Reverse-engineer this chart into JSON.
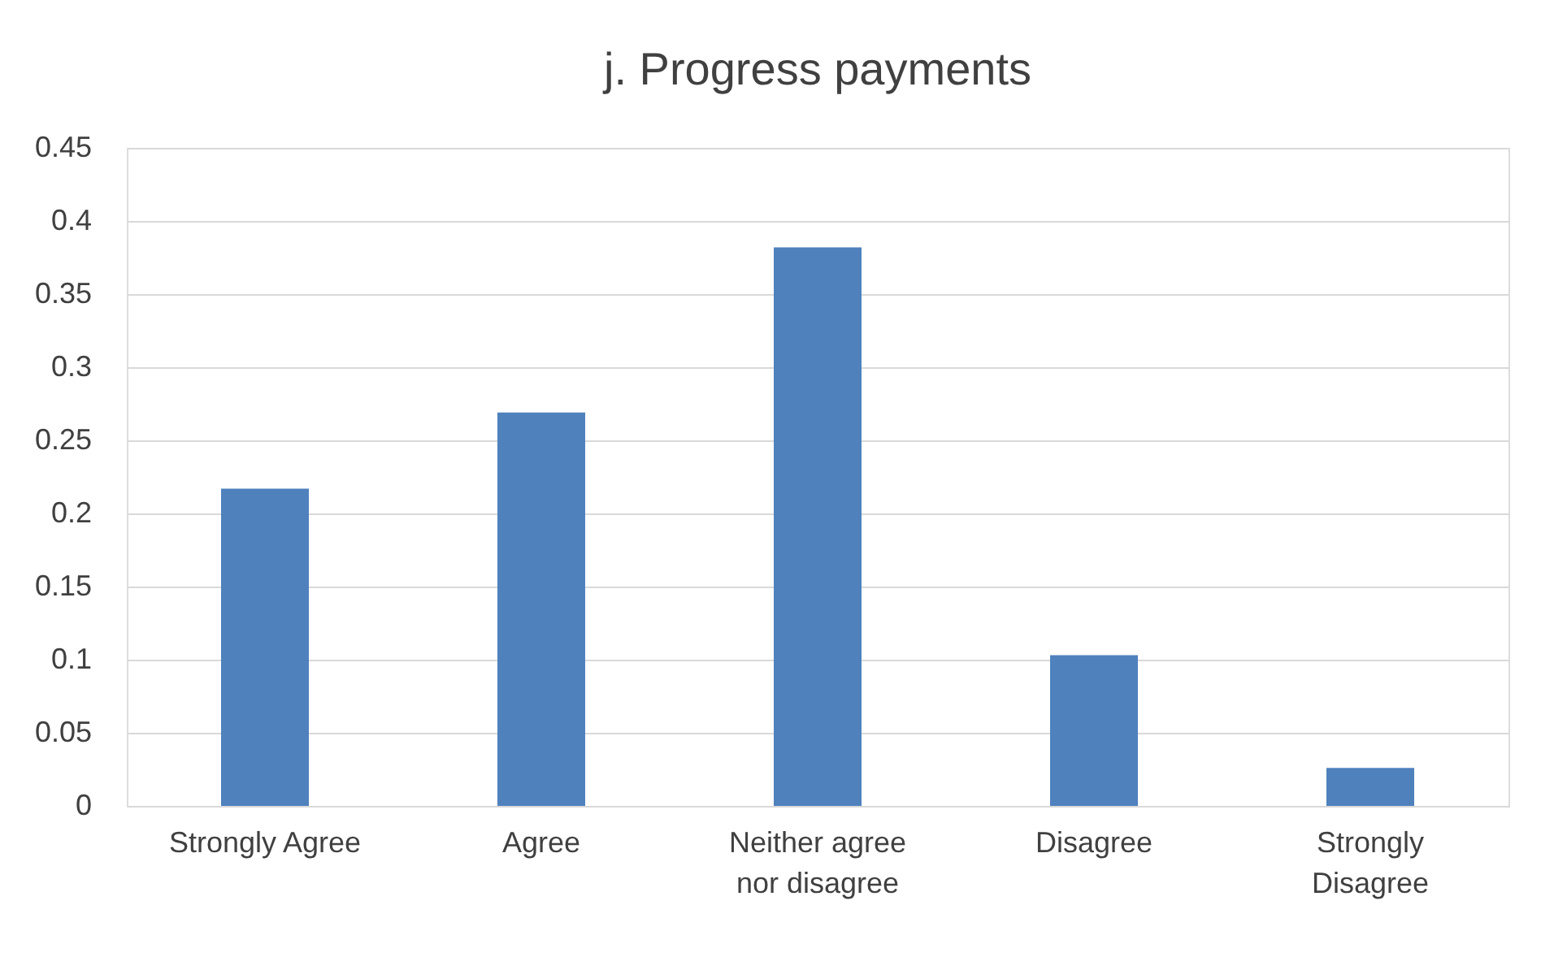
{
  "chart_data": {
    "type": "bar",
    "title": "j. Progress payments",
    "categories": [
      "Strongly Agree",
      "Agree",
      "Neither agree nor disagree",
      "Disagree",
      "Strongly Disagree"
    ],
    "values": [
      0.217,
      0.269,
      0.382,
      0.103,
      0.026
    ],
    "color": "#4f81bd",
    "ylim": [
      0,
      0.45
    ],
    "yticks": [
      0,
      0.05,
      0.1,
      0.15,
      0.2,
      0.25,
      0.3,
      0.35,
      0.4,
      0.45
    ],
    "grid": "y"
  }
}
